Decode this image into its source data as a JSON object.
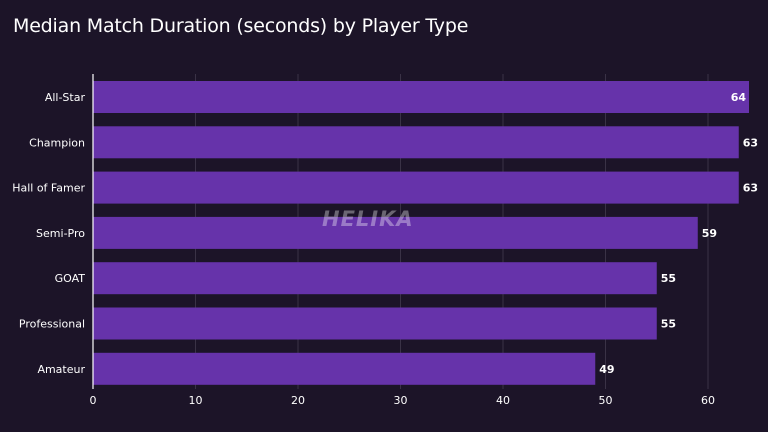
{
  "chart_data": {
    "type": "bar",
    "orientation": "horizontal",
    "title": "Median Match Duration (seconds) by Player Type",
    "categories": [
      "All-Star",
      "Champion",
      "Hall of Famer",
      "Semi-Pro",
      "GOAT",
      "Professional",
      "Amateur"
    ],
    "values": [
      64,
      63,
      63,
      59,
      55,
      55,
      49
    ],
    "xlim": [
      0,
      64
    ],
    "xticks": [
      0,
      10,
      20,
      30,
      40,
      50,
      60
    ],
    "grid": "vertical",
    "xlabel": "",
    "ylabel": ""
  },
  "colors": {
    "background": "#1c1428",
    "bar": "#6633aa",
    "grid": "#3a3246",
    "axis": "#ffffff"
  },
  "watermark": "HELIKA"
}
